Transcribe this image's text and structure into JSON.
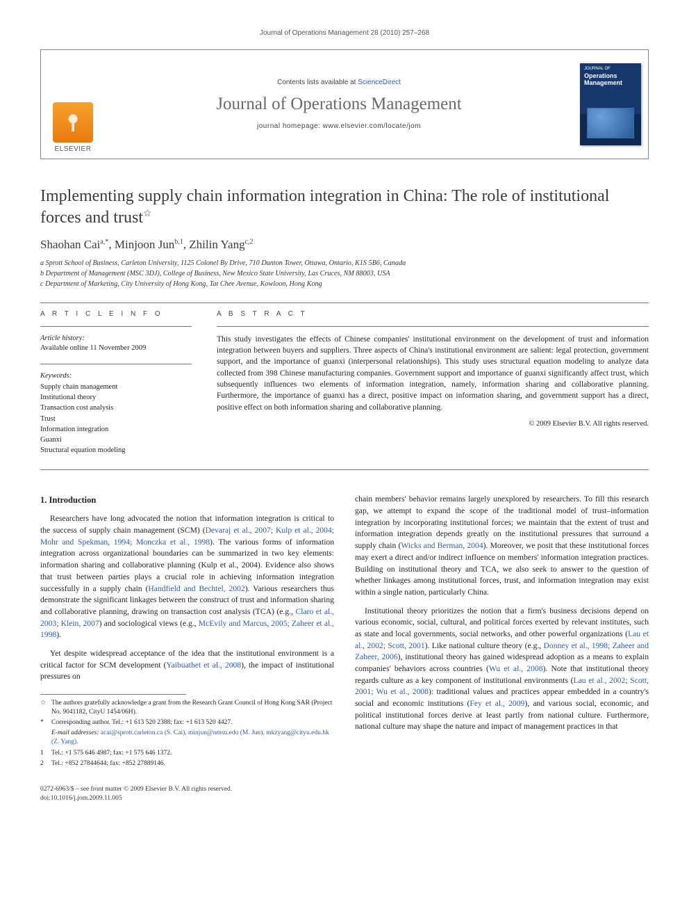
{
  "runningHeader": "Journal of Operations Management 28 (2010) 257–268",
  "masthead": {
    "contentsPrefix": "Contents lists available at ",
    "contentsLink": "ScienceDirect",
    "journalTitle": "Journal of Operations Management",
    "homepagePrefix": "journal homepage: ",
    "homepageUrl": "www.elsevier.com/locate/jom",
    "publisherWord": "ELSEVIER",
    "cover": {
      "smallLine": "JOURNAL OF",
      "title": "Operations Management"
    }
  },
  "article": {
    "title": "Implementing supply chain information integration in China: The role of institutional forces and trust",
    "titleFnMark": "☆",
    "authorsHtml": "Shaohan Cai",
    "authors": [
      {
        "name": "Shaohan Cai",
        "marks": "a,*"
      },
      {
        "name": "Minjoon Jun",
        "marks": "b,1"
      },
      {
        "name": "Zhilin Yang",
        "marks": "c,2"
      }
    ],
    "affiliations": [
      "a Sprott School of Business, Carleton University, 1125 Colonel By Drive, 710 Dunton Tower, Ottawa, Ontario, K1S 5B6, Canada",
      "b Department of Management (MSC 3DJ), College of Business, New Mexico State University, Las Cruces, NM 88003, USA",
      "c Department of Marketing, City University of Hong Kong, Tat Chee Avenue, Kowloon, Hong Kong"
    ]
  },
  "info": {
    "label": "A R T I C L E   I N F O",
    "historyHdr": "Article history:",
    "historyLine": "Available online 11 November 2009",
    "kwHdr": "Keywords:",
    "keywords": [
      "Supply chain management",
      "Institutional theory",
      "Transaction cost analysis",
      "Trust",
      "Information integration",
      "Guanxi",
      "Structural equation modeling"
    ]
  },
  "abstract": {
    "label": "A B S T R A C T",
    "text": "This study investigates the effects of Chinese companies' institutional environment on the development of trust and information integration between buyers and suppliers. Three aspects of China's institutional environment are salient: legal protection, government support, and the importance of guanxi (interpersonal relationships). This study uses structural equation modeling to analyze data collected from 398 Chinese manufacturing companies. Government support and importance of guanxi significantly affect trust, which subsequently influences two elements of information integration, namely, information sharing and collaborative planning. Furthermore, the importance of guanxi has a direct, positive impact on information sharing, and government support has a direct, positive effect on both information sharing and collaborative planning.",
    "copyright": "© 2009 Elsevier B.V. All rights reserved."
  },
  "body": {
    "h1": "1. Introduction",
    "leftParas": [
      "Researchers have long advocated the notion that information integration is critical to the success of supply chain management (SCM) (Devaraj et al., 2007; Kulp et al., 2004; Mohr and Spekman, 1994; Monczka et al., 1998). The various forms of information integration across organizational boundaries can be summarized in two key elements: information sharing and collaborative planning (Kulp et al., 2004). Evidence also shows that trust between parties plays a crucial role in achieving information integration successfully in a supply chain (Handfield and Bechtel, 2002). Various researchers thus demonstrate the significant linkages between the construct of trust and information sharing and collaborative planning, drawing on transaction cost analysis (TCA) (e.g., Claro et al., 2003; Klein, 2007) and sociological views (e.g., McEvily and Marcus, 2005; Zaheer et al., 1998).",
      "Yet despite widespread acceptance of the idea that the institutional environment is a critical factor for SCM development (Yaibuathet et al., 2008), the impact of institutional pressures on"
    ],
    "rightParas": [
      "chain members' behavior remains largely unexplored by researchers. To fill this research gap, we attempt to expand the scope of the traditional model of trust–information integration by incorporating institutional forces; we maintain that the extent of trust and information integration depends greatly on the institutional pressures that surround a supply chain (Wicks and Berman, 2004). Moreover, we posit that these institutional forces may exert a direct and/or indirect influence on members' information integration practices. Building on institutional theory and TCA, we also seek to answer to the question of whether linkages among institutional forces, trust, and information integration may exist within a single nation, particularly China.",
      "Institutional theory prioritizes the notion that a firm's business decisions depend on various economic, social, cultural, and political forces exerted by relevant institutes, such as state and local governments, social networks, and other powerful organizations (Lau et al., 2002; Scott, 2001). Like national culture theory (e.g., Donney et al., 1998; Zaheer and Zaheer, 2006), institutional theory has gained widespread adoption as a means to explain companies' behaviors across countries (Wu et al., 2008). Note that institutional theory regards culture as a key component of institutional environments (Lau et al., 2002; Scott, 2001; Wu et al., 2008): traditional values and practices appear embedded in a country's social and economic institutions (Fey et al., 2009), and various social, economic, and political institutional forces derive at least partly from national culture. Furthermore, national culture may shape the nature and impact of management practices in that"
    ],
    "leftLinks": [
      "Devaraj et al., 2007; Kulp et al., 2004; Mohr and Spekman, 1994; Monczka et al., 1998",
      "Kulp et al., 2004",
      "Handfield and Bechtel, 2002",
      "Claro et al., 2003; Klein, 2007",
      "McEvily and Marcus, 2005; Zaheer et al., 1998",
      "Yaibuathet et al., 2008"
    ],
    "rightLinks": [
      "Wicks and Berman, 2004",
      "Lau et al., 2002; Scott, 2001",
      "Donney et al., 1998; Zaheer and Zaheer, 2006",
      "Wu et al., 2008",
      "Lau et al., 2002; Scott, 2001; Wu et al., 2008",
      "Fey et al., 2009"
    ]
  },
  "footnotes": {
    "star": "The authors gratefully acknowledge a grant from the Research Grant Council of Hong Kong SAR (Project No. 9041182, CityU 1454/06H).",
    "corresponding": "Corresponding author. Tel.: +1 613 520 2388; fax: +1 613 520 4427.",
    "emailsLabel": "E-mail addresses:",
    "emails": "acai@sprott.carleton.ca (S. Cai), minjun@nmsu.edu (M. Jun), mkzyang@cityu.edu.hk (Z. Yang).",
    "fn1": "Tel.: +1 575 646 4987; fax: +1 575 646 1372.",
    "fn2": "Tel.: +852 27844644; fax: +852 27889146."
  },
  "footer": {
    "issn": "0272-6963/$ – see front matter © 2009 Elsevier B.V. All rights reserved.",
    "doi": "doi:10.1016/j.jom.2009.11.005"
  },
  "colors": {
    "link": "#2a5db0",
    "textGray": "#3a3a3a",
    "ruleGray": "#777",
    "elsevierOrange": "#e87b0e",
    "coverBlue": "#16386b"
  },
  "typography": {
    "bodyFont": "Georgia, Times New Roman, serif",
    "sansFont": "Arial, sans-serif",
    "titleSize": 24,
    "authorSize": 17,
    "bodySize": 11.6,
    "abstractSize": 11.5,
    "footnoteSize": 9.5
  }
}
